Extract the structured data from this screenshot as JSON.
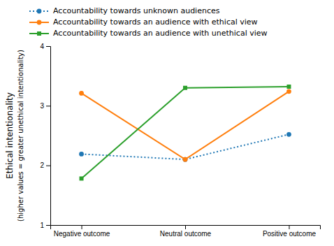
{
  "chart_data": {
    "type": "line",
    "categories": [
      "Negative outcome",
      "Neutral outcome",
      "Positive outcome"
    ],
    "series": [
      {
        "name": "Accountability towards unknown audiences",
        "values": [
          2.19,
          2.1,
          2.52
        ],
        "line_style": "dotted",
        "marker": "circle"
      },
      {
        "name": "Accountability towards an audience with ethical view",
        "values": [
          3.21,
          2.1,
          3.24
        ],
        "line_style": "solid",
        "marker": "circle"
      },
      {
        "name": "Accountability towards an audience with unethical view",
        "values": [
          1.78,
          3.3,
          3.32
        ],
        "line_style": "solid",
        "marker": "square"
      }
    ],
    "ylabel": [
      "Ethical intentionality",
      "(higher values = greater unethical intentionality)"
    ],
    "ylim": [
      1,
      4
    ],
    "yticks": [
      1,
      2,
      3,
      4
    ],
    "grid": false,
    "legend": "top-left"
  }
}
